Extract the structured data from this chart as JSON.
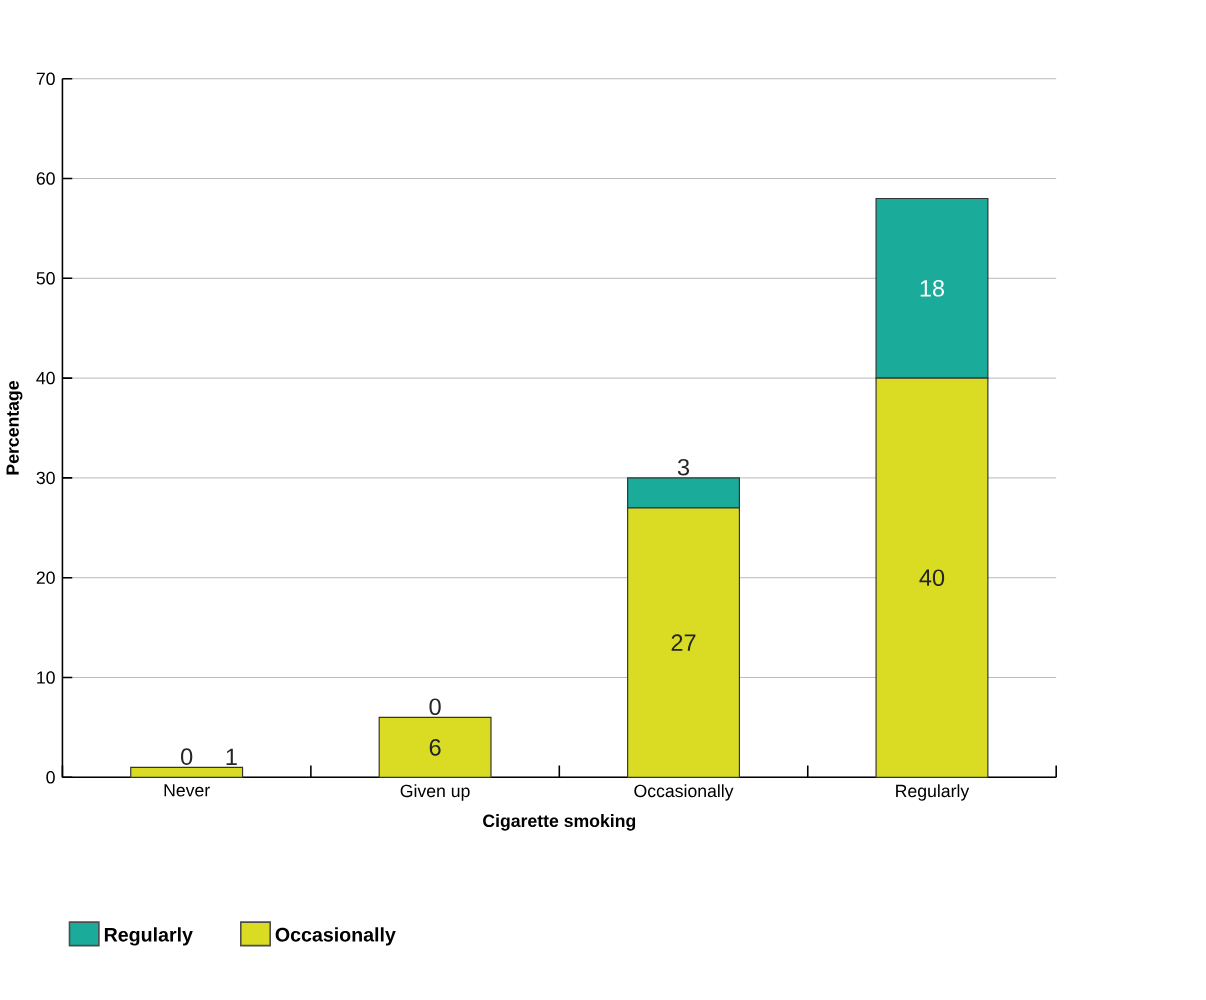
{
  "chart_data": {
    "type": "bar",
    "stacked": true,
    "xlabel": "Cigarette smoking",
    "ylabel": "Percentage",
    "categories": [
      "Never",
      "Given up",
      "Occasionally",
      "Regularly"
    ],
    "series": [
      {
        "name": "Occasionally",
        "color": "#d9dc22",
        "values": [
          1,
          6,
          27,
          40
        ]
      },
      {
        "name": "Regularly",
        "color": "#1aab9b",
        "values": [
          0,
          0,
          3,
          18
        ]
      }
    ],
    "ylim": [
      0,
      70
    ],
    "yticks": [
      0,
      10,
      20,
      30,
      40,
      50,
      60,
      70
    ],
    "grid": "y",
    "legend": "bottom",
    "data_labels": true
  }
}
